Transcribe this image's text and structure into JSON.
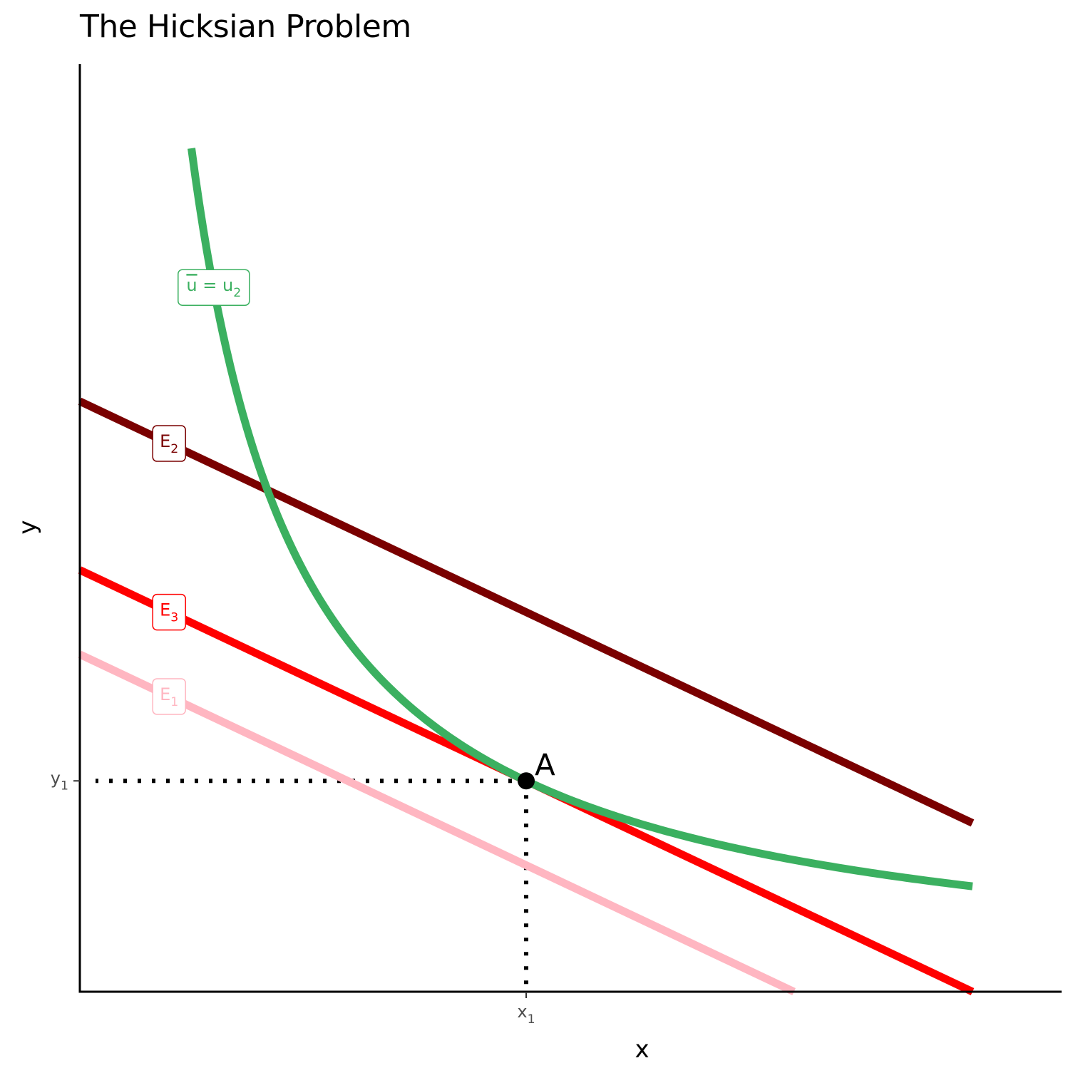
{
  "chart_data": {
    "type": "line",
    "title": "The Hicksian Problem",
    "xlabel": "x",
    "ylabel": "y",
    "xlim": [
      0,
      11
    ],
    "ylim": [
      0,
      11
    ],
    "grid": false,
    "x_ticks": [
      {
        "value": 5,
        "label": "x",
        "sub": "1"
      }
    ],
    "y_ticks": [
      {
        "value": 2.5,
        "label": "y",
        "sub": "1"
      }
    ],
    "series": [
      {
        "name": "E",
        "sub": "1",
        "color": "#FFB6C1",
        "kind": "line",
        "points": [
          [
            0,
            4
          ],
          [
            8,
            0
          ]
        ]
      },
      {
        "name": "E",
        "sub": "2",
        "color": "#7A0000",
        "kind": "line",
        "points": [
          [
            0,
            7
          ],
          [
            10,
            2
          ]
        ]
      },
      {
        "name": "E",
        "sub": "3",
        "color": "#FF0000",
        "kind": "line",
        "points": [
          [
            0,
            5
          ],
          [
            10,
            0
          ]
        ]
      },
      {
        "name": "u = u",
        "sub": "2",
        "overline": "u",
        "color": "#3BB060",
        "kind": "curve",
        "k": 12.5,
        "x_range": [
          1.25,
          10
        ]
      }
    ],
    "labels": [
      {
        "series": 3,
        "x": 1.5,
        "y": 8.35
      },
      {
        "series": 1,
        "x": 1,
        "y": 6.5
      },
      {
        "series": 2,
        "x": 1,
        "y": 4.5
      },
      {
        "series": 0,
        "x": 1,
        "y": 3.5
      }
    ],
    "point": {
      "label": "A",
      "x": 5,
      "y": 2.5,
      "color": "#000000"
    },
    "guides": {
      "style": "dotted",
      "color": "#000000"
    }
  }
}
